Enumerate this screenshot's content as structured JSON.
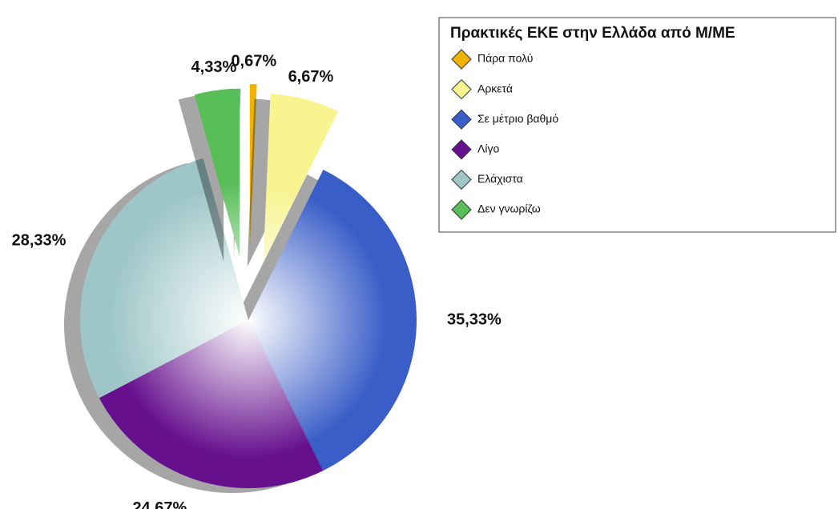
{
  "chart_data": {
    "type": "pie",
    "title": "Πρακτικές ΕΚΕ στην Ελλάδα από Μ/ΜΕ",
    "categories": [
      "Πάρα πολύ",
      "Αρκετά",
      "Σε μέτριο βαθμό",
      "Λίγο",
      "Ελάχιστα",
      "Δεν γνωρίζω"
    ],
    "values": [
      0.67,
      6.67,
      35.33,
      24.67,
      28.33,
      4.33
    ],
    "value_labels": [
      "0,67%",
      "6,67%",
      "35,33%",
      "24,67%",
      "28,33%",
      "4,33%"
    ],
    "colors": [
      "#f0b400",
      "#f8f490",
      "#3a5ec8",
      "#66108e",
      "#9ec6c8",
      "#58be58"
    ],
    "legend": "upper right"
  }
}
